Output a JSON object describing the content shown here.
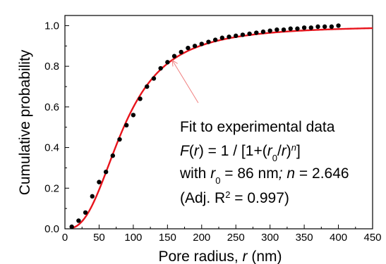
{
  "chart_data": {
    "type": "scatter",
    "xlabel": {
      "prefix": "Pore radius, ",
      "var": "r",
      "suffix": " (nm)"
    },
    "ylabel": "Cumulative probability",
    "xlim": [
      0,
      450
    ],
    "ylim": [
      0.0,
      1.05
    ],
    "x_ticks": [
      "0",
      "50",
      "100",
      "150",
      "200",
      "250",
      "300",
      "350",
      "400",
      "450"
    ],
    "y_ticks": [
      "0.0",
      "0.2",
      "0.4",
      "0.6",
      "0.8",
      "1.0"
    ],
    "grid": false,
    "series": [
      {
        "kind": "points",
        "color": "#000000",
        "x": [
          10,
          20,
          30,
          40,
          50,
          60,
          70,
          80,
          90,
          100,
          110,
          120,
          130,
          140,
          150,
          160,
          170,
          180,
          190,
          200,
          210,
          220,
          230,
          240,
          250,
          260,
          270,
          280,
          290,
          300,
          310,
          320,
          330,
          340,
          350,
          360,
          370,
          380,
          390,
          400
        ],
        "y": [
          0.01,
          0.04,
          0.08,
          0.16,
          0.23,
          0.28,
          0.36,
          0.44,
          0.51,
          0.56,
          0.64,
          0.7,
          0.74,
          0.79,
          0.82,
          0.85,
          0.87,
          0.89,
          0.9,
          0.91,
          0.92,
          0.93,
          0.94,
          0.945,
          0.95,
          0.955,
          0.96,
          0.965,
          0.97,
          0.975,
          0.98,
          0.98,
          0.985,
          0.985,
          0.99,
          0.99,
          0.995,
          0.995,
          0.995,
          1.0
        ]
      },
      {
        "kind": "fit",
        "color": "#e8141c",
        "model": "F(r) = 1 / [1+(r0/r)^n]",
        "r0": 86,
        "n": 2.646,
        "x_range": [
          10,
          450
        ]
      }
    ],
    "annotation": {
      "arrow_color": "#f08080",
      "arrow_from": [
        195,
        0.62
      ],
      "arrow_to": [
        157,
        0.83
      ],
      "lines": [
        {
          "id": "title",
          "text": "Fit to experimental data"
        },
        {
          "id": "formula",
          "parts": [
            "F",
            "(",
            "r",
            ") = 1 / [1+(",
            "r",
            "0",
            "/",
            "r",
            ")",
            "n",
            "]"
          ]
        },
        {
          "id": "params",
          "parts": [
            "with ",
            "r",
            "0",
            " = 86 nm",
            "; ",
            "n",
            " = 2.646"
          ]
        },
        {
          "id": "r2",
          "parts": [
            "(Adj. R",
            "2",
            " = 0.997)"
          ]
        }
      ]
    }
  }
}
